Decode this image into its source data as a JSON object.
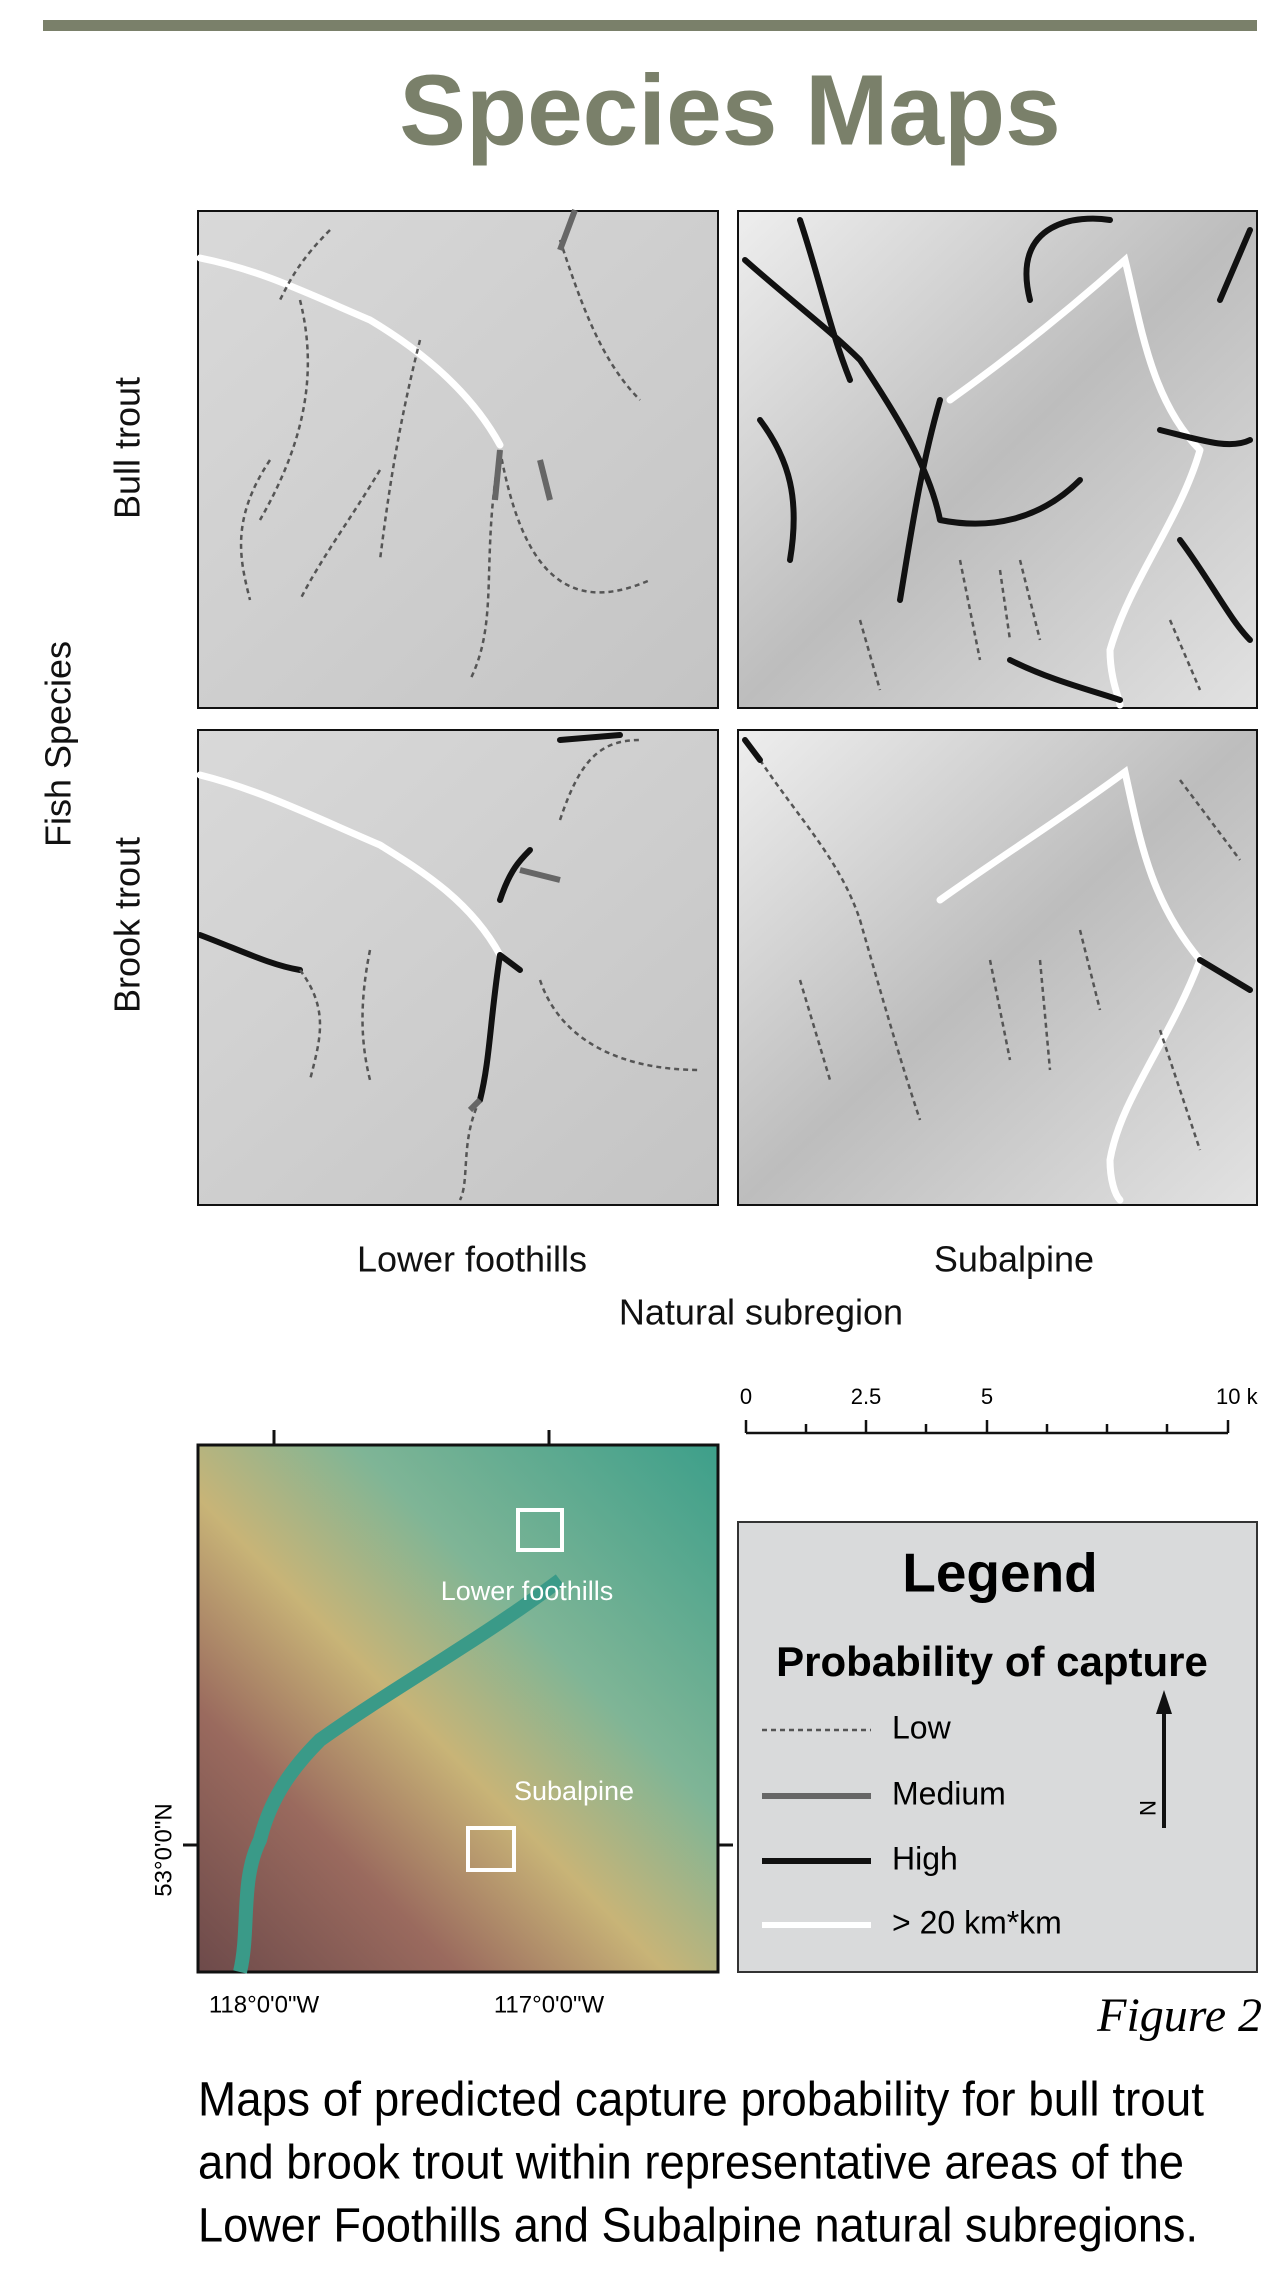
{
  "title": "Species Maps",
  "row_axis_label": "Fish Species",
  "rows": [
    "Bull trout",
    "Brook trout"
  ],
  "columns": [
    "Lower foothills",
    "Subalpine"
  ],
  "column_axis_label": "Natural subregion",
  "scale_bar": {
    "labels": [
      "0",
      "2.5",
      "5",
      "10 k"
    ]
  },
  "overview_map": {
    "labels": [
      "Lower foothills",
      "Subalpine"
    ],
    "x_labels": [
      "118°0'0\"W",
      "117°0'0\"W"
    ],
    "y_label": "53°0'0\"N"
  },
  "legend": {
    "title": "Legend",
    "subtitle": "Probability of capture",
    "items": [
      "Low",
      "Medium",
      "High",
      "> 20 km*km"
    ],
    "north": "N"
  },
  "figure_label": "Figure 2",
  "caption": [
    "Maps of predicted capture probability for bull trout",
    "and brook trout within representative areas of the",
    "Lower Foothills and Subalpine natural subregions."
  ]
}
